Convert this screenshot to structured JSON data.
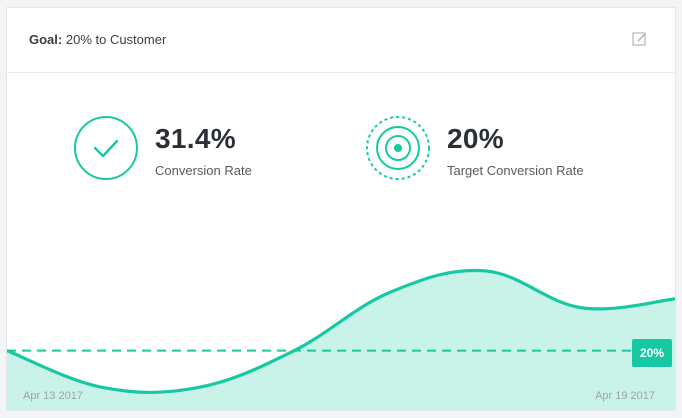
{
  "header": {
    "goal_prefix": "Goal:",
    "goal_text": "20% to Customer",
    "edit_icon": "edit-icon"
  },
  "metrics": {
    "conversion": {
      "value": "31.4%",
      "label": "Conversion Rate",
      "icon": "check-circle-icon"
    },
    "target": {
      "value": "20%",
      "label": "Target Conversion Rate",
      "icon": "target-icon"
    }
  },
  "chart_data": {
    "type": "area",
    "x_start_label": "Apr 13 2017",
    "x_end_label": "Apr 19 2017",
    "target_value_label": "20%",
    "target": 20,
    "ylim": [
      0,
      60
    ],
    "values": [
      20,
      8,
      8,
      20,
      39,
      46,
      34,
      37
    ],
    "grid": false
  },
  "colors": {
    "accent": "#16c9a3",
    "area_fill": "#c9f3e8",
    "background": "#f3f4f5"
  }
}
